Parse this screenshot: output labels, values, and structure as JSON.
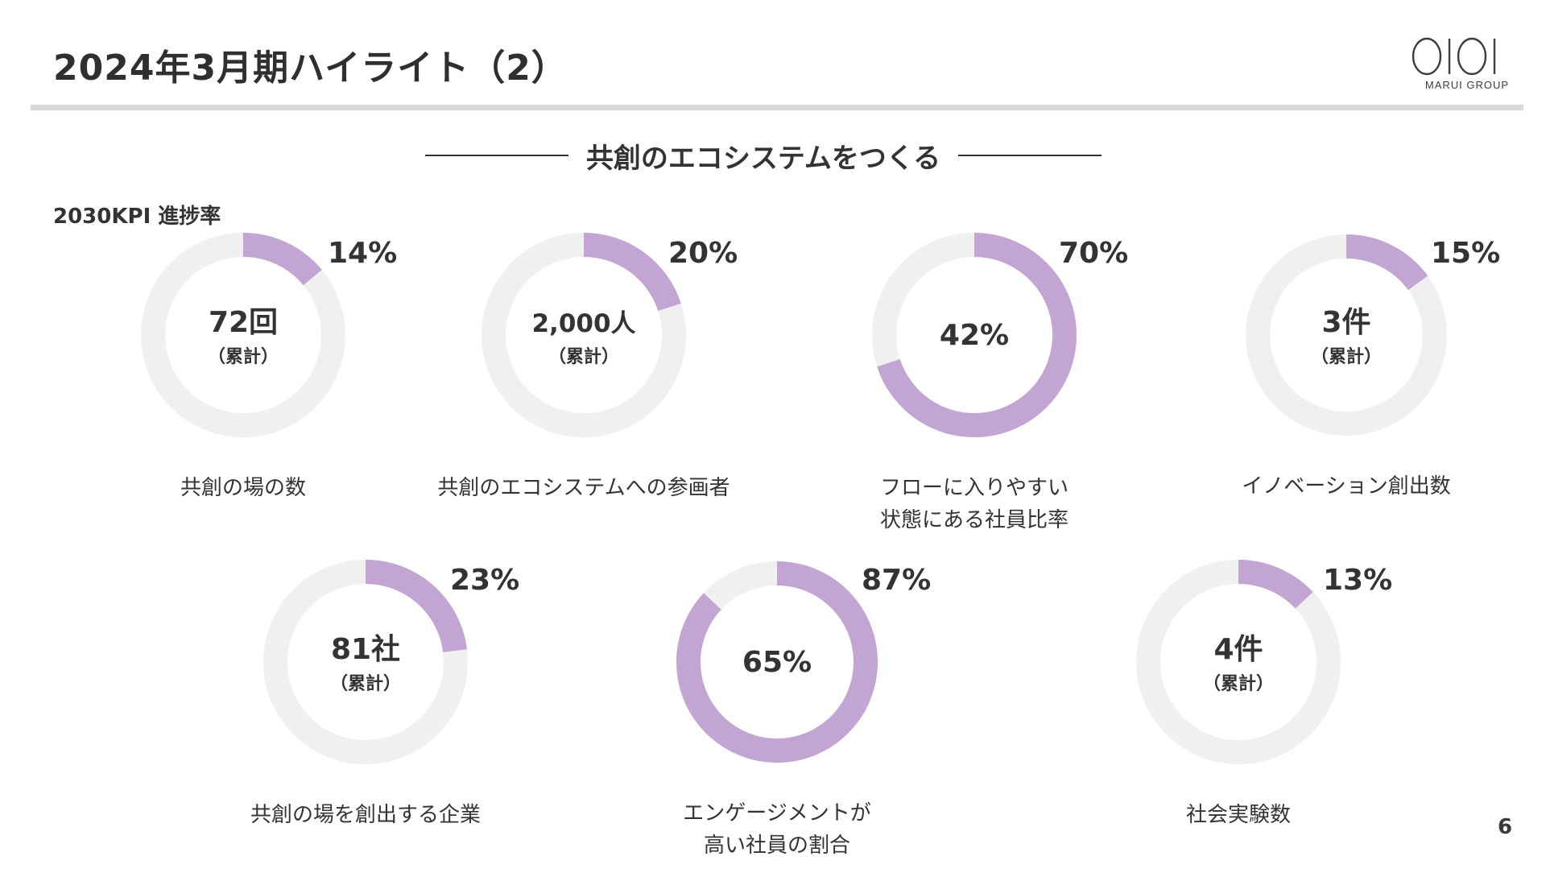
{
  "header": {
    "title": "2024年3月期ハイライト（2）",
    "logo_text": "MARUI GROUP"
  },
  "section": {
    "heading": "共創のエコシステムをつくる",
    "kpi_label": "2030KPI 進捗率"
  },
  "page_number": "6",
  "colors": {
    "progress": "#c2a5d3",
    "track": "#f0f0f0",
    "text": "#333333",
    "rule": "#d9d9d9"
  },
  "chart_data": [
    {
      "type": "pie",
      "title": "共創の場の数",
      "percent": 14,
      "percent_label": "14%",
      "center_value": "72回",
      "center_note": "（累計）",
      "caption": [
        "共創の場の数"
      ]
    },
    {
      "type": "pie",
      "title": "共創のエコシステムへの参画者",
      "percent": 20,
      "percent_label": "20%",
      "center_value": "2,000人",
      "center_note": "（累計）",
      "caption": [
        "共創のエコシステムへの参画者"
      ]
    },
    {
      "type": "pie",
      "title": "フローに入りやすい状態にある社員比率",
      "percent": 70,
      "percent_label": "70%",
      "center_value": "42%",
      "center_note": "",
      "caption": [
        "フローに入りやすい",
        "状態にある社員比率"
      ]
    },
    {
      "type": "pie",
      "title": "イノベーション創出数",
      "percent": 15,
      "percent_label": "15%",
      "center_value": "3件",
      "center_note": "（累計）",
      "caption": [
        "イノベーション創出数"
      ]
    },
    {
      "type": "pie",
      "title": "共創の場を創出する企業",
      "percent": 23,
      "percent_label": "23%",
      "center_value": "81社",
      "center_note": "（累計）",
      "caption": [
        "共創の場を創出する企業"
      ]
    },
    {
      "type": "pie",
      "title": "エンゲージメントが高い社員の割合",
      "percent": 87,
      "percent_label": "87%",
      "center_value": "65%",
      "center_note": "",
      "caption": [
        "エンゲージメントが",
        "高い社員の割合"
      ]
    },
    {
      "type": "pie",
      "title": "社会実験数",
      "percent": 13,
      "percent_label": "13%",
      "center_value": "4件",
      "center_note": "（累計）",
      "caption": [
        "社会実験数"
      ]
    }
  ]
}
